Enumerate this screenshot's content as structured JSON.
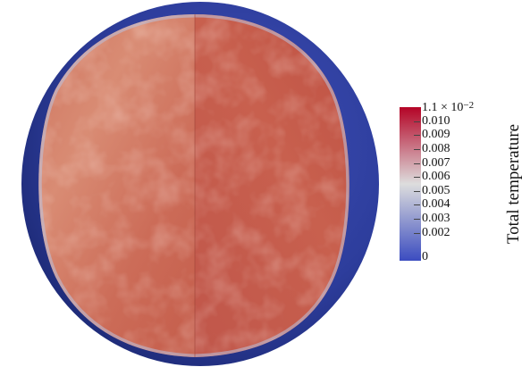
{
  "colorbar": {
    "title": "Total temperature",
    "max_label_base": "1.1 × 10",
    "max_label_exp": "−2",
    "min_label": "0",
    "ticks": [
      "0.010",
      "0.009",
      "0.008",
      "0.007",
      "0.006",
      "0.005",
      "0.004",
      "0.003",
      "0.002"
    ],
    "range": [
      0,
      0.011
    ],
    "colors": {
      "low": "#3b4cc0",
      "mid": "#dddddd",
      "high": "#b40426"
    }
  },
  "visualization": {
    "description_colors": {
      "shell": "#2c3fa0",
      "interior": "#c8604e"
    }
  }
}
